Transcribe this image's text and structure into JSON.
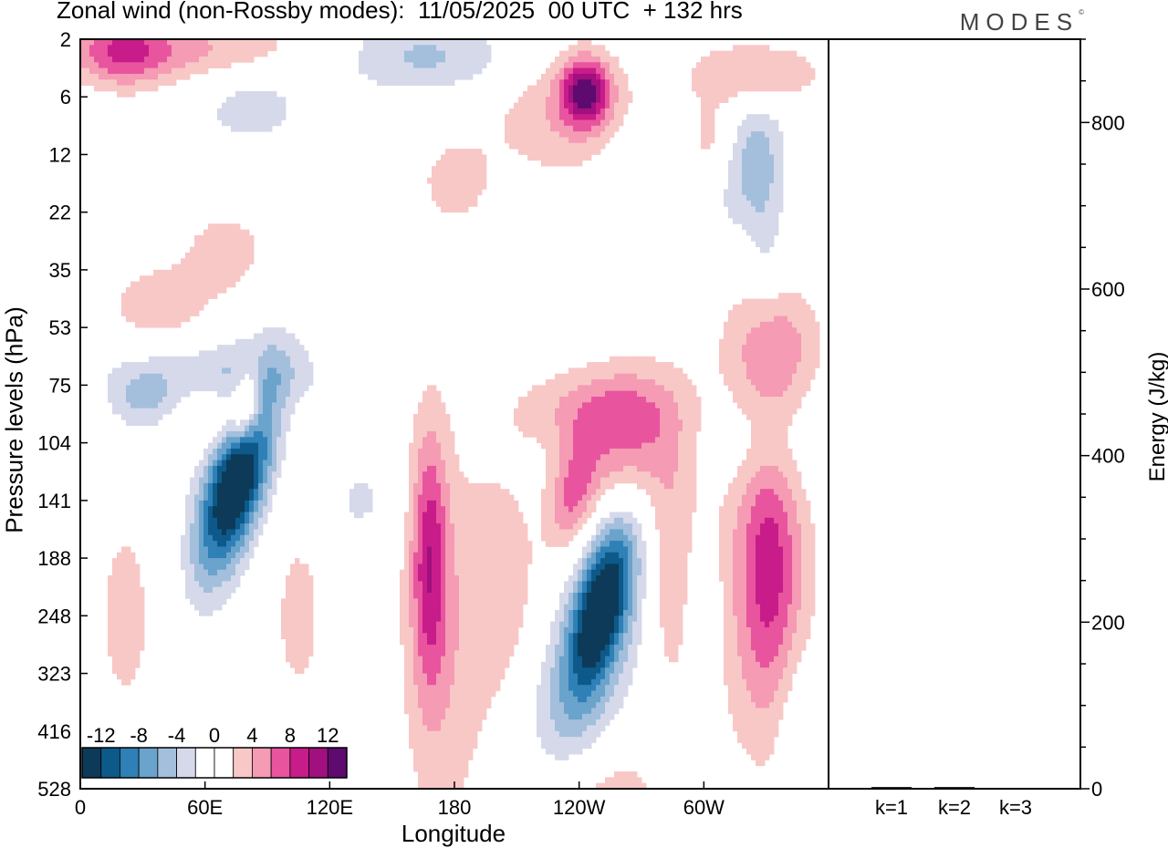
{
  "title": "Zonal wind (non-Rossby modes):  11/05/2025  00 UTC  + 132 hrs",
  "logo": "MODES",
  "colors": {
    "neg": [
      "#0d3a58",
      "#0d5a8a",
      "#2f80b7",
      "#6aa3cb",
      "#a3bfdc",
      "#d5d9ea"
    ],
    "zero": "#ffffff",
    "pos": [
      "#f8c8c6",
      "#f59bb4",
      "#e8549e",
      "#c81c8a",
      "#a0107e",
      "#5e0a6e"
    ]
  },
  "chart_data": [
    {
      "type": "heatmap",
      "title": "Zonal wind (non-Rossby modes):  11/05/2025  00 UTC  + 132 hrs",
      "xlabel": "Longitude",
      "ylabel": "Pressure levels (hPa)",
      "x_ticks": [
        "0",
        "60E",
        "120E",
        "180",
        "120W",
        "60W"
      ],
      "x_tick_values": [
        0,
        60,
        120,
        180,
        240,
        300
      ],
      "xlim": [
        0,
        360
      ],
      "y_ticks": [
        "2",
        "6",
        "12",
        "22",
        "35",
        "53",
        "75",
        "104",
        "141",
        "188",
        "248",
        "323",
        "416",
        "528"
      ],
      "colorbar_labels": [
        "-12",
        "-8",
        "-4",
        "0",
        "4",
        "8",
        "12"
      ],
      "colorbar_bins": 14,
      "features": [
        {
          "lon": 75,
          "lev": 7.7,
          "value": -14,
          "sx": 10,
          "sy": 1.1,
          "tilt": -7
        },
        {
          "lon": 77,
          "lev": 7.0,
          "value": -3,
          "sx": 14,
          "sy": 1.5,
          "tilt": -6
        },
        {
          "lon": 251,
          "lev": 9.8,
          "value": -13,
          "sx": 9,
          "sy": 1.0,
          "tilt": -6
        },
        {
          "lon": 248,
          "lev": 10.6,
          "value": -4,
          "sx": 17,
          "sy": 1.6,
          "tilt": -5
        },
        {
          "lon": 235,
          "lev": 11.8,
          "value": -2.5,
          "sx": 16,
          "sy": 0.9,
          "tilt": 0
        },
        {
          "lon": 80,
          "lev": 6.3,
          "value": 8,
          "sx": 5,
          "sy": 0.5,
          "tilt": -3
        },
        {
          "lon": 70,
          "lev": 6.6,
          "value": 3.5,
          "sx": 16,
          "sy": 0.5,
          "tilt": -3
        },
        {
          "lon": 168,
          "lev": 9.0,
          "value": 7.5,
          "sx": 6,
          "sy": 1.6,
          "tilt": 0
        },
        {
          "lon": 175,
          "lev": 10.5,
          "value": 3.5,
          "sx": 16,
          "sy": 2.6,
          "tilt": 0
        },
        {
          "lon": 237,
          "lev": 7.9,
          "value": 6,
          "sx": 8,
          "sy": 0.7,
          "tilt": -4
        },
        {
          "lon": 245,
          "lev": 6.4,
          "value": 4,
          "sx": 26,
          "sy": 0.5,
          "tilt": -2
        },
        {
          "lon": 243,
          "lev": 0.9,
          "value": 11,
          "sx": 8,
          "sy": 0.4,
          "tilt": 0
        },
        {
          "lon": 235,
          "lev": 1.3,
          "value": 4,
          "sx": 26,
          "sy": 0.8,
          "tilt": 0
        },
        {
          "lon": 20,
          "lev": 0.2,
          "value": 6.5,
          "sx": 16,
          "sy": 0.45,
          "tilt": 0
        },
        {
          "lon": 60,
          "lev": 0.2,
          "value": 4.5,
          "sx": 40,
          "sy": 0.4,
          "tilt": 0
        },
        {
          "lon": 165,
          "lev": 0.3,
          "value": -4.5,
          "sx": 32,
          "sy": 0.45,
          "tilt": 0
        },
        {
          "lon": 82,
          "lev": 1.1,
          "value": -3,
          "sx": 20,
          "sy": 0.6,
          "tilt": 0
        },
        {
          "lon": 320,
          "lev": 2.1,
          "value": -5,
          "sx": 12,
          "sy": 0.8,
          "tilt": -3
        },
        {
          "lon": 304,
          "lev": 1.9,
          "value": 4,
          "sx": 10,
          "sy": 0.6,
          "tilt": -2
        },
        {
          "lon": 325,
          "lev": 0.6,
          "value": 4.5,
          "sx": 22,
          "sy": 0.4,
          "tilt": 0
        },
        {
          "lon": 333,
          "lev": 5.3,
          "value": 5,
          "sx": 16,
          "sy": 0.8,
          "tilt": 0
        },
        {
          "lon": 332,
          "lev": 9.0,
          "value": 6,
          "sx": 10,
          "sy": 1.8,
          "tilt": 0
        },
        {
          "lon": 325,
          "lev": 9.5,
          "value": 3.5,
          "sx": 22,
          "sy": 2.2,
          "tilt": 0
        },
        {
          "lon": 65,
          "lev": 5.8,
          "value": -3.5,
          "sx": 38,
          "sy": 0.4,
          "tilt": -1
        },
        {
          "lon": 30,
          "lev": 6.3,
          "value": -4,
          "sx": 12,
          "sy": 0.4,
          "tilt": 0
        },
        {
          "lon": 265,
          "lev": 7.0,
          "value": 5.5,
          "sx": 18,
          "sy": 0.9,
          "tilt": -3
        },
        {
          "lon": 250,
          "lev": 13.2,
          "value": 4,
          "sx": 20,
          "sy": 1.0,
          "tilt": 0
        },
        {
          "lon": 70,
          "lev": 3.7,
          "value": 3.5,
          "sx": 14,
          "sy": 0.5,
          "tilt": 0
        },
        {
          "lon": 38,
          "lev": 4.6,
          "value": 3.5,
          "sx": 18,
          "sy": 0.5,
          "tilt": 0
        },
        {
          "lon": 22,
          "lev": 10.0,
          "value": 2.5,
          "sx": 14,
          "sy": 1.8,
          "tilt": 0
        },
        {
          "lon": 105,
          "lev": 10.0,
          "value": 2.5,
          "sx": 12,
          "sy": 1.5,
          "tilt": 0
        },
        {
          "lon": 205,
          "lev": 9.5,
          "value": 3.0,
          "sx": 12,
          "sy": 1.5,
          "tilt": 0
        },
        {
          "lon": 284,
          "lev": 9.2,
          "value": 3.5,
          "sx": 8,
          "sy": 1.5,
          "tilt": 0
        },
        {
          "lon": 300,
          "lev": 10.0,
          "value": -2.5,
          "sx": 7,
          "sy": 1.0,
          "tilt": 0
        },
        {
          "lon": 345,
          "lev": 12.0,
          "value": -2.5,
          "sx": 7,
          "sy": 1.0,
          "tilt": 0
        },
        {
          "lon": 135,
          "lev": 8.0,
          "value": -2.5,
          "sx": 12,
          "sy": 0.5,
          "tilt": 0
        },
        {
          "lon": 330,
          "lev": 3.4,
          "value": -2.5,
          "sx": 7,
          "sy": 1.2,
          "tilt": 0
        },
        {
          "lon": 275,
          "lev": 2.2,
          "value": -2.5,
          "sx": 16,
          "sy": 0.6,
          "tilt": 0
        },
        {
          "lon": 330,
          "lev": 7.0,
          "value": -2.5,
          "sx": 18,
          "sy": 0.7,
          "tilt": 0
        },
        {
          "lon": 180,
          "lev": 2.5,
          "value": 2.8,
          "sx": 14,
          "sy": 0.6,
          "tilt": 0
        }
      ]
    },
    {
      "type": "bar",
      "categories": [
        "k=1",
        "k=2",
        "k=3"
      ],
      "values": [
        2,
        2,
        1
      ],
      "ylabel": "Energy (J/kg)",
      "ylim": [
        0,
        900
      ],
      "y_ticks": [
        0,
        200,
        400,
        600,
        800
      ],
      "y_minor_step": 50
    }
  ]
}
